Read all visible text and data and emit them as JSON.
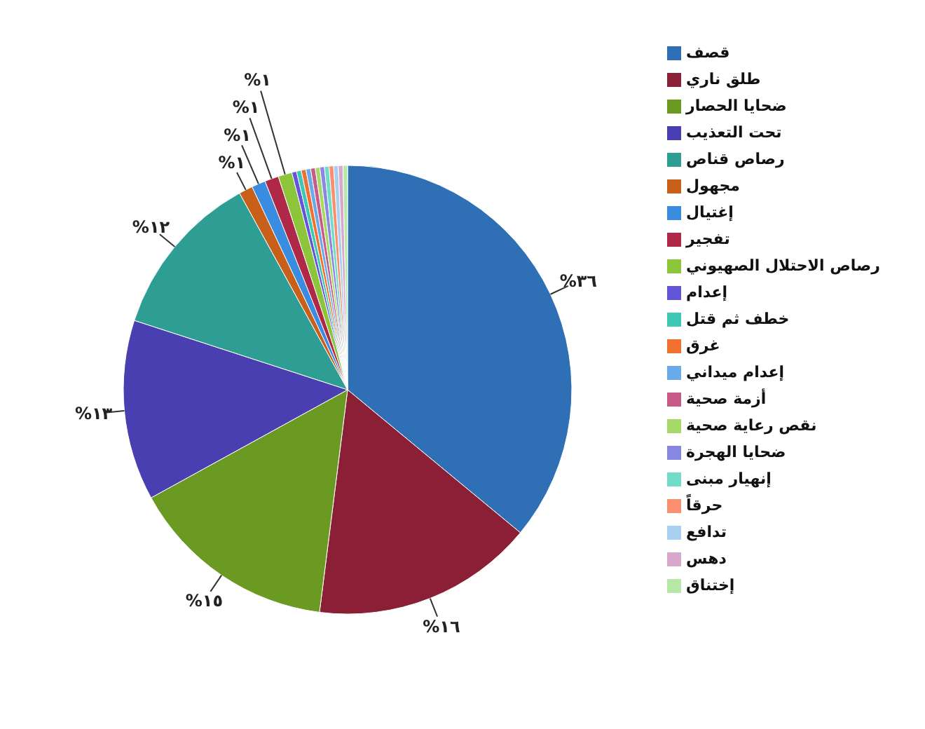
{
  "chart_data": {
    "type": "pie",
    "categories": [
      "قصف",
      "طلق ناري",
      "ضحايا الحصار",
      "تحت التعذيب",
      "رصاص قناص",
      "مجهول",
      "إغتيال",
      "تفجير",
      "رصاص الاحتلال الصهيوني",
      "إعدام",
      "خطف ثم قتل",
      "غرق",
      "إعدام ميداني",
      "أزمة صحية",
      "نقص رعاية صحية",
      "ضحايا الهجرة",
      "إنهيار مبنى",
      "حرقاً",
      "تدافع",
      "دهس",
      "إختناق"
    ],
    "values": [
      36,
      16,
      15,
      13,
      12,
      1,
      1,
      1,
      1,
      0.34,
      0.34,
      0.34,
      0.34,
      0.33,
      0.33,
      0.33,
      0.33,
      0.33,
      0.33,
      0.33,
      0.33
    ],
    "value_labels": [
      "%٣٦",
      "%١٦",
      "%١٥",
      "%١٣",
      "%١٢",
      "%١",
      "%١",
      "%١",
      "%١",
      null,
      null,
      null,
      null,
      null,
      null,
      null,
      null,
      null,
      null,
      null,
      null
    ],
    "colors": [
      "#2f6fb5",
      "#8b1f35",
      "#6b9a22",
      "#4a3fb0",
      "#2e9e94",
      "#c8601a",
      "#3a8ce0",
      "#b02848",
      "#8cc43a",
      "#6355d8",
      "#3cc8b4",
      "#f07030",
      "#6aaae8",
      "#c85a8a",
      "#a8d868",
      "#8888e0",
      "#70dcc8",
      "#f89070",
      "#a8cff0",
      "#d8a8cc",
      "#b8e8a8"
    ],
    "legend": "right"
  }
}
